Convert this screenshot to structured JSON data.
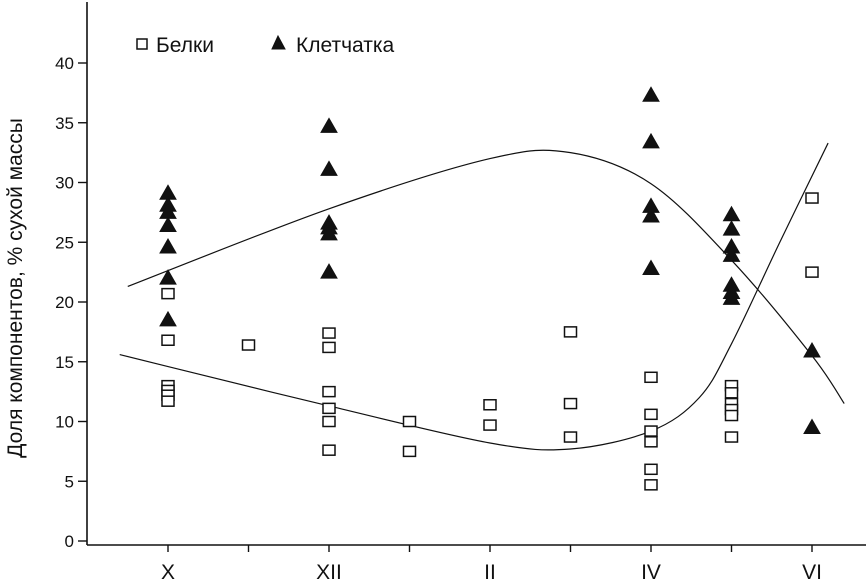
{
  "chart_data": {
    "type": "scatter",
    "ylabel": "Доля компонентов, % сухой массы",
    "xlabel": "",
    "ylim": [
      0,
      45
    ],
    "yticks": [
      0,
      5,
      10,
      15,
      20,
      25,
      30,
      35,
      40
    ],
    "categories": [
      "X",
      "XII",
      "II",
      "IV",
      "VI"
    ],
    "legend": [
      {
        "name": "Белки",
        "marker": "open-square"
      },
      {
        "name": "Клетчатка",
        "marker": "filled-triangle"
      }
    ],
    "legend_position": "top-left",
    "grid": false,
    "series": [
      {
        "name": "Белки",
        "marker": "open-square",
        "points": [
          {
            "x": 0,
            "y": 20.7
          },
          {
            "x": 0,
            "y": 16.8
          },
          {
            "x": 0,
            "y": 13.0
          },
          {
            "x": 0,
            "y": 12.6
          },
          {
            "x": 0,
            "y": 12.2
          },
          {
            "x": 0,
            "y": 11.7
          },
          {
            "x": 0.5,
            "y": 16.4
          },
          {
            "x": 1,
            "y": 17.4
          },
          {
            "x": 1,
            "y": 16.2
          },
          {
            "x": 1,
            "y": 12.5
          },
          {
            "x": 1,
            "y": 11.1
          },
          {
            "x": 1,
            "y": 10.0
          },
          {
            "x": 1,
            "y": 7.6
          },
          {
            "x": 1.5,
            "y": 10.0
          },
          {
            "x": 1.5,
            "y": 7.5
          },
          {
            "x": 2,
            "y": 11.4
          },
          {
            "x": 2,
            "y": 9.7
          },
          {
            "x": 2.5,
            "y": 17.5
          },
          {
            "x": 2.5,
            "y": 11.5
          },
          {
            "x": 2.5,
            "y": 8.7
          },
          {
            "x": 3,
            "y": 13.7
          },
          {
            "x": 3,
            "y": 10.6
          },
          {
            "x": 3,
            "y": 9.2
          },
          {
            "x": 3,
            "y": 8.3
          },
          {
            "x": 3,
            "y": 6.0
          },
          {
            "x": 3,
            "y": 4.7
          },
          {
            "x": 3.5,
            "y": 13.0
          },
          {
            "x": 3.5,
            "y": 12.4
          },
          {
            "x": 3.5,
            "y": 11.5
          },
          {
            "x": 3.5,
            "y": 11.0
          },
          {
            "x": 3.5,
            "y": 10.5
          },
          {
            "x": 3.5,
            "y": 8.7
          },
          {
            "x": 4,
            "y": 28.7
          },
          {
            "x": 4,
            "y": 22.5
          }
        ]
      },
      {
        "name": "Клетчатка",
        "marker": "filled-triangle",
        "points": [
          {
            "x": 0,
            "y": 29.1
          },
          {
            "x": 0,
            "y": 28.1
          },
          {
            "x": 0,
            "y": 27.5
          },
          {
            "x": 0,
            "y": 26.4
          },
          {
            "x": 0,
            "y": 24.6
          },
          {
            "x": 0,
            "y": 22.0
          },
          {
            "x": 0,
            "y": 18.5
          },
          {
            "x": 1,
            "y": 34.7
          },
          {
            "x": 1,
            "y": 31.1
          },
          {
            "x": 1,
            "y": 26.6
          },
          {
            "x": 1,
            "y": 26.2
          },
          {
            "x": 1,
            "y": 25.7
          },
          {
            "x": 1,
            "y": 22.5
          },
          {
            "x": 3,
            "y": 37.3
          },
          {
            "x": 3,
            "y": 33.4
          },
          {
            "x": 3,
            "y": 28.0
          },
          {
            "x": 3,
            "y": 27.2
          },
          {
            "x": 3,
            "y": 22.8
          },
          {
            "x": 3.5,
            "y": 27.3
          },
          {
            "x": 3.5,
            "y": 26.1
          },
          {
            "x": 3.5,
            "y": 24.6
          },
          {
            "x": 3.5,
            "y": 23.9
          },
          {
            "x": 3.5,
            "y": 21.4
          },
          {
            "x": 3.5,
            "y": 20.8
          },
          {
            "x": 3.5,
            "y": 20.3
          },
          {
            "x": 4,
            "y": 15.9
          },
          {
            "x": 4,
            "y": 9.5
          }
        ]
      }
    ],
    "trend_lines": [
      {
        "series": "Клетчатка",
        "points": [
          [
            -0.25,
            21.3
          ],
          [
            1,
            27.8
          ],
          [
            2,
            32.0
          ],
          [
            2.5,
            32.5
          ],
          [
            3,
            29.9
          ],
          [
            3.5,
            23.5
          ],
          [
            4,
            15.5
          ],
          [
            4.2,
            11.5
          ]
        ]
      },
      {
        "series": "Белки",
        "points": [
          [
            -0.3,
            15.6
          ],
          [
            0,
            14.6
          ],
          [
            1,
            11.3
          ],
          [
            2,
            8.2
          ],
          [
            2.5,
            7.7
          ],
          [
            3,
            9.2
          ],
          [
            3.3,
            12.0
          ],
          [
            3.5,
            16.5
          ],
          [
            3.8,
            25.0
          ],
          [
            4.1,
            33.3
          ]
        ]
      }
    ]
  }
}
